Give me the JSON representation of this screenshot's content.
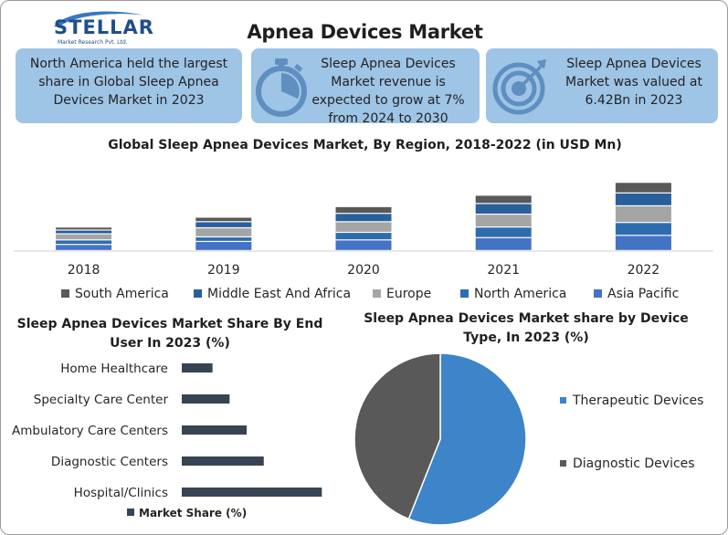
{
  "logo": {
    "name": "STELLAR",
    "tagline": "Market Research Pvt. Ltd."
  },
  "page_title": "Apnea Devices Market",
  "cards": [
    {
      "text": "North America held the largest share in Global Sleep Apnea Devices Market in 2023"
    },
    {
      "text": "Sleep Apnea Devices Market revenue is expected to grow at 7% from 2024 to 2030",
      "icon": "stopwatch-icon"
    },
    {
      "text": "Sleep Apnea Devices Market was valued at 6.42Bn in 2023",
      "icon": "target-icon"
    }
  ],
  "colors": {
    "card_bg": "#9ec4e6",
    "card_icon": "#5f8fc0",
    "dark_navy": "#374454",
    "therapeutic": "#3d84c8",
    "diagnostic": "#595959"
  },
  "chart_data": [
    {
      "type": "bar",
      "stacked": true,
      "title": "Global Sleep Apnea Devices Market, By Region, 2018-2022 (in USD Mn)",
      "categories": [
        "2018",
        "2019",
        "2020",
        "2021",
        "2022"
      ],
      "series": [
        {
          "name": "Asia Pacific",
          "color": "#4472c4",
          "values": [
            8,
            12,
            14,
            17,
            20
          ]
        },
        {
          "name": "North America",
          "color": "#2e6cb0",
          "values": [
            6,
            6,
            10,
            14,
            17
          ]
        },
        {
          "name": "Europe",
          "color": "#a5a5a5",
          "values": [
            8,
            12,
            14,
            17,
            22
          ]
        },
        {
          "name": "Middle East And Africa",
          "color": "#285f9c",
          "values": [
            5,
            8,
            11,
            14,
            17
          ]
        },
        {
          "name": "South America",
          "color": "#595959",
          "values": [
            4,
            6,
            9,
            11,
            14
          ]
        }
      ],
      "legend_order": [
        "South America",
        "Middle East And Africa",
        "Europe",
        "North America",
        "Asia Pacific"
      ],
      "legend": "bottom",
      "grid": false
    },
    {
      "type": "bar",
      "orientation": "horizontal",
      "title": "Sleep Apnea Devices  Market Share By End User In 2023 (%)",
      "categories": [
        "Home Healthcare",
        "Specialty Care Center",
        "Ambulatory Care Centers",
        "Diagnostic Centers",
        "Hospital/Clinics"
      ],
      "series": [
        {
          "name": "Market Share (%)",
          "color": "#374454",
          "values": [
            9,
            14,
            19,
            24,
            41
          ]
        }
      ],
      "legend": "bottom",
      "grid": false
    },
    {
      "type": "pie",
      "title": "Sleep Apnea Devices Market share by Device Type, In 2023 (%)",
      "categories": [
        "Therapeutic Devices",
        "Diagnostic Devices"
      ],
      "values": [
        56,
        44
      ],
      "colors": [
        "#3d84c8",
        "#595959"
      ],
      "legend": "right"
    }
  ]
}
